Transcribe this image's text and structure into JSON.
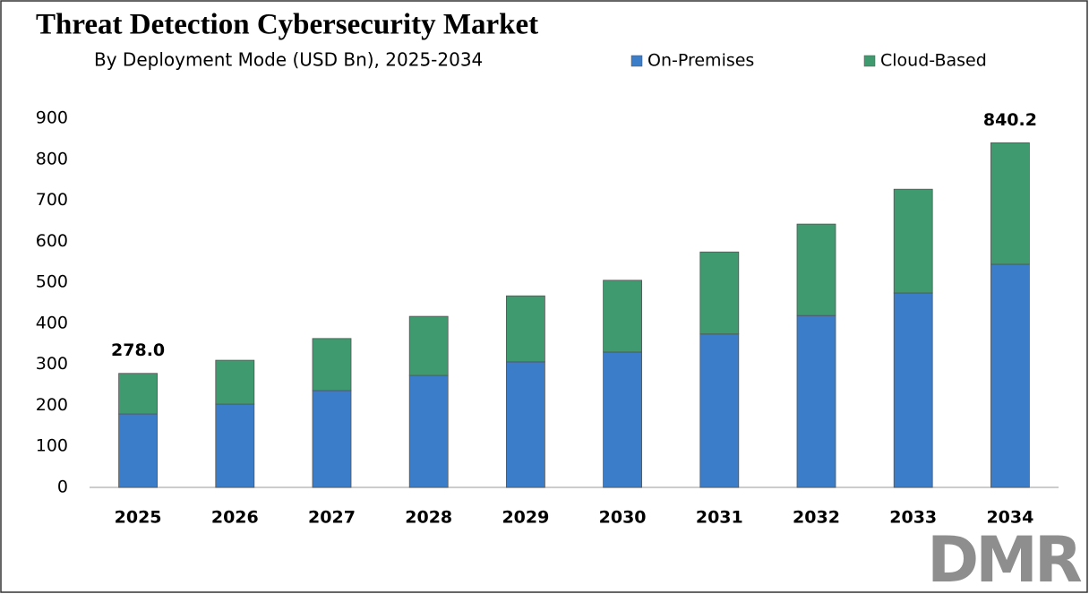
{
  "chart_data": {
    "type": "stacked_bar",
    "title": "Threat Detection Cybersecurity Market",
    "subtitle": "By Deployment Mode (USD Bn), 2025-2034",
    "categories": [
      "2025",
      "2026",
      "2027",
      "2028",
      "2029",
      "2030",
      "2031",
      "2032",
      "2033",
      "2034"
    ],
    "series": [
      {
        "name": "On-Premises",
        "color": "#3b7dc9",
        "values": [
          179,
          203,
          236,
          273,
          306,
          330,
          374,
          419,
          474,
          544
        ]
      },
      {
        "name": "Cloud-Based",
        "color": "#3f9a6f",
        "values": [
          99,
          107,
          127,
          144,
          161,
          175,
          200,
          223,
          253,
          296.2
        ]
      }
    ],
    "totals": [
      278.0,
      null,
      null,
      null,
      null,
      null,
      null,
      null,
      null,
      840.2
    ],
    "total_labels": [
      "278.0",
      null,
      null,
      null,
      null,
      null,
      null,
      null,
      null,
      "840.2"
    ],
    "ylim": [
      0,
      900
    ],
    "yticks": [
      0,
      100,
      200,
      300,
      400,
      500,
      600,
      700,
      800,
      900
    ],
    "grid": false,
    "legend": "top",
    "logo": "DMR"
  }
}
